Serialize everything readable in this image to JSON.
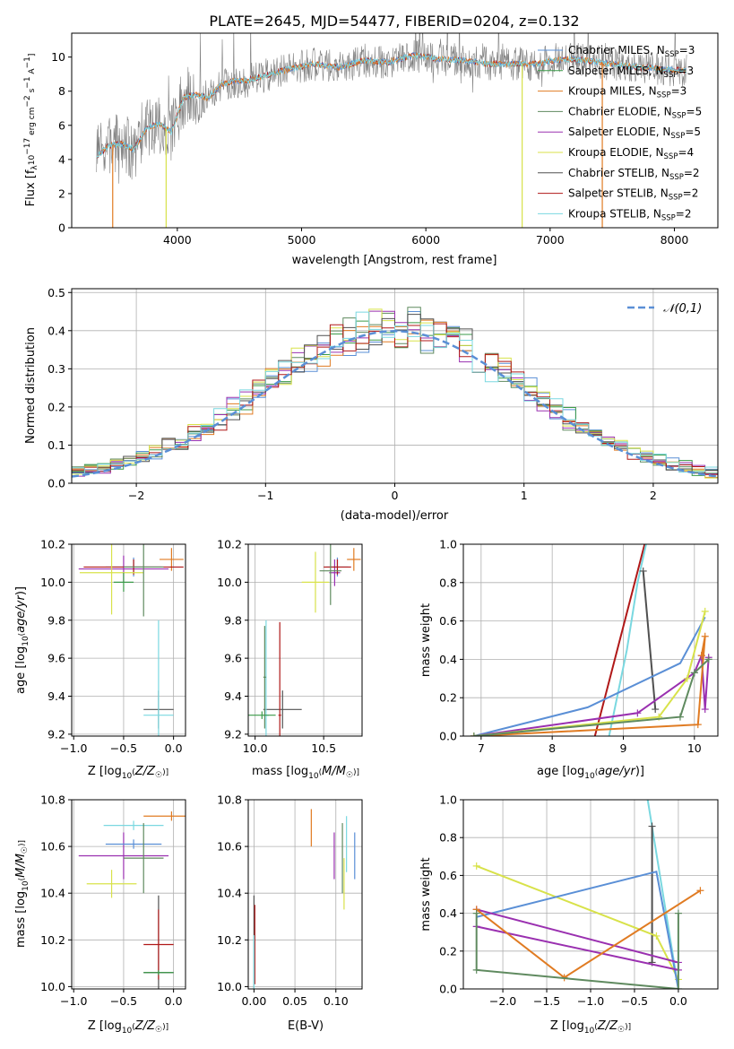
{
  "figure_title": "PLATE=2645, MJD=54477, FIBERID=0204, z=0.132",
  "models": [
    {
      "name": "Chabrier MILES, N_{SSP}=3",
      "label": "Chabrier MILES, N",
      "sub": "SSP",
      "tail": "=3",
      "color": "#5a8fd6"
    },
    {
      "name": "Salpeter MILES, N_{SSP}=3",
      "label": "Salpeter MILES, N",
      "sub": "SSP",
      "tail": "=3",
      "color": "#3a9a48"
    },
    {
      "name": "Kroupa MILES, N_{SSP}=3",
      "label": "Kroupa MILES, N",
      "sub": "SSP",
      "tail": "=3",
      "color": "#e07b22"
    },
    {
      "name": "Chabrier ELODIE, N_{SSP}=5",
      "label": "Chabrier ELODIE, N",
      "sub": "SSP",
      "tail": "=5",
      "color": "#5f8a5f"
    },
    {
      "name": "Salpeter ELODIE, N_{SSP}=5",
      "label": "Salpeter ELODIE, N",
      "sub": "SSP",
      "tail": "=5",
      "color": "#9a30b0"
    },
    {
      "name": "Kroupa ELODIE, N_{SSP}=4",
      "label": "Kroupa ELODIE, N",
      "sub": "SSP",
      "tail": "=4",
      "color": "#d8e24a"
    },
    {
      "name": "Chabrier STELIB, N_{SSP}=2",
      "label": "Chabrier STELIB, N",
      "sub": "SSP",
      "tail": "=2",
      "color": "#505050"
    },
    {
      "name": "Salpeter STELIB, N_{SSP}=2",
      "label": "Salpeter STELIB, N",
      "sub": "SSP",
      "tail": "=2",
      "color": "#b01818"
    },
    {
      "name": "Kroupa STELIB, N_{SSP}=2",
      "label": "Kroupa STELIB, N",
      "sub": "SSP",
      "tail": "=2",
      "color": "#7ad8e0"
    }
  ],
  "chart_data": [
    {
      "id": "spectrum",
      "type": "line",
      "xlabel": "wavelength [Angstrom, rest frame]",
      "ylabel": "Flux [f_λ10^-17 erg cm^-2 s^-1 A^-1]",
      "xlim": [
        3150,
        8350
      ],
      "ylim": [
        0,
        11.4
      ],
      "xticks": [
        4000,
        5000,
        6000,
        7000,
        8000
      ],
      "yticks": [
        0,
        2,
        4,
        6,
        8,
        10
      ],
      "data_range": [
        3350,
        8100
      ],
      "data_color": "#808080",
      "continuum_x": [
        3350,
        3450,
        3550,
        3650,
        3750,
        3850,
        3950,
        4050,
        4150,
        4250,
        4350,
        4450,
        4550,
        4700,
        4900,
        5100,
        5300,
        5500,
        5700,
        5900,
        6100,
        6300,
        6500,
        6700,
        6900,
        7100,
        7300,
        7500,
        7700,
        7900,
        8100
      ],
      "continuum_y": [
        4.2,
        4.8,
        4.9,
        4.6,
        5.8,
        6.1,
        5.6,
        7.6,
        7.8,
        7.6,
        8.4,
        8.6,
        8.6,
        8.9,
        9.3,
        9.6,
        9.4,
        9.8,
        9.7,
        10.1,
        9.9,
        9.8,
        9.6,
        9.6,
        9.6,
        9.9,
        9.8,
        9.6,
        9.4,
        9.3,
        9.2
      ],
      "dropouts": [
        {
          "x": 3480,
          "color": "#e07b22"
        },
        {
          "x": 3910,
          "color": "#d8e24a"
        },
        {
          "x": 6775,
          "color": "#d8e24a"
        },
        {
          "x": 7420,
          "color": "#e07b22"
        }
      ]
    },
    {
      "id": "residuals",
      "type": "histogram",
      "xlabel": "(data-model)/error",
      "ylabel": "Normed distribution",
      "xlim": [
        -2.5,
        2.5
      ],
      "ylim": [
        0,
        0.51
      ],
      "xticks": [
        -2,
        -1,
        0,
        1,
        2
      ],
      "yticks": [
        0.0,
        0.1,
        0.2,
        0.3,
        0.4,
        0.5
      ],
      "bin_width": 0.1,
      "reference": {
        "name": "𝒩(0,1)",
        "color": "#5a8fd6"
      }
    },
    {
      "id": "age_vs_Z",
      "type": "errorbar",
      "xlabel": "Z [log10(Z/Z☉)]",
      "ylabel": "age [log10(age/yr)]",
      "xlim": [
        -1.02,
        0.12
      ],
      "ylim": [
        9.19,
        10.2
      ],
      "xticks": [
        -1.0,
        -0.5,
        0.0
      ],
      "yticks": [
        9.2,
        9.4,
        9.6,
        9.8,
        10.0,
        10.2
      ],
      "points": [
        {
          "m": 2,
          "x": -0.02,
          "xe": 0.12,
          "y": 10.12,
          "ye": 0.06
        },
        {
          "m": 0,
          "x": -0.4,
          "xe": 0.28,
          "y": 10.08,
          "ye": 0.05
        },
        {
          "m": 4,
          "x": -0.5,
          "xe": 0.45,
          "y": 10.07,
          "ye": 0.07
        },
        {
          "m": 7,
          "x": -0.4,
          "xe": 0.5,
          "y": 10.08,
          "ye": 0.04
        },
        {
          "m": 5,
          "x": -0.62,
          "xe": 0.32,
          "y": 10.05,
          "ye": 0.22
        },
        {
          "m": 3,
          "x": -0.3,
          "xe": 0.2,
          "y": 10.08,
          "ye": 0.26
        },
        {
          "m": 6,
          "x": -0.15,
          "xe": 0.15,
          "y": 9.33,
          "ye": 0.1
        },
        {
          "m": 8,
          "x": -0.15,
          "xe": 0.15,
          "y": 9.3,
          "ye": 0.5
        },
        {
          "m": 1,
          "x": -0.5,
          "xe": 0.1,
          "y": 10.0,
          "ye": 0.05
        }
      ]
    },
    {
      "id": "age_vs_mass",
      "type": "errorbar",
      "xlabel": "mass [log10(M/M☉)]",
      "ylabel": "",
      "xlim": [
        9.95,
        10.78
      ],
      "ylim": [
        9.19,
        10.2
      ],
      "xticks": [
        10.0,
        10.5
      ],
      "yticks": [
        9.2,
        9.4,
        9.6,
        9.8,
        10.0,
        10.2
      ],
      "points": [
        {
          "m": 2,
          "x": 10.72,
          "xe": 0.05,
          "y": 10.12,
          "ye": 0.06
        },
        {
          "m": 0,
          "x": 10.6,
          "xe": 0.08,
          "y": 10.08,
          "ye": 0.05
        },
        {
          "m": 4,
          "x": 10.58,
          "xe": 0.04,
          "y": 10.05,
          "ye": 0.07
        },
        {
          "m": 7,
          "x": 10.6,
          "xe": 0.1,
          "y": 10.08,
          "ye": 0.04
        },
        {
          "m": 5,
          "x": 10.44,
          "xe": 0.1,
          "y": 10.0,
          "ye": 0.16
        },
        {
          "m": 3,
          "x": 10.55,
          "xe": 0.08,
          "y": 10.06,
          "ye": 0.18
        },
        {
          "m": 6,
          "x": 10.2,
          "xe": 0.14,
          "y": 9.33,
          "ye": 0.1
        },
        {
          "m": 8,
          "x": 10.08,
          "xe": 0.02,
          "y": 9.3,
          "ye": 0.5
        },
        {
          "m": 7,
          "x": 10.18,
          "xe": 0.01,
          "y": 9.3,
          "ye": 0.49
        },
        {
          "m": 3,
          "x": 10.07,
          "xe": 0.01,
          "y": 9.5,
          "ye": 0.27
        },
        {
          "m": 1,
          "x": 10.05,
          "xe": 0.1,
          "y": 9.3,
          "ye": 0.02
        }
      ]
    },
    {
      "id": "weight_vs_age",
      "type": "line",
      "xlabel": "age [log10(age/yr)]",
      "ylabel": "mass weight",
      "xlim": [
        6.75,
        10.33
      ],
      "ylim": [
        0,
        1.0
      ],
      "xticks": [
        7,
        8,
        9,
        10
      ],
      "yticks": [
        0.0,
        0.2,
        0.4,
        0.6,
        0.8,
        1.0
      ],
      "series": [
        {
          "m": 7,
          "x": [
            8.6,
            9.3
          ],
          "y": [
            0,
            1.0
          ],
          "marker": false
        },
        {
          "m": 8,
          "x": [
            8.8,
            9.05,
            9.2,
            9.32
          ],
          "y": [
            0,
            0.45,
            0.8,
            1.0
          ],
          "marker": false
        },
        {
          "m": 6,
          "x": [
            9.28,
            9.45
          ],
          "y": [
            0.86,
            0.14
          ],
          "marker": true
        },
        {
          "m": 0,
          "x": [
            6.9,
            8.5,
            9.8,
            10.15
          ],
          "y": [
            0,
            0.15,
            0.38,
            0.62
          ],
          "marker": false
        },
        {
          "m": 4,
          "x": [
            6.9,
            9.2,
            10.0,
            10.1,
            10.15,
            10.2
          ],
          "y": [
            0,
            0.12,
            0.33,
            0.42,
            0.14,
            0.41
          ],
          "marker": true
        },
        {
          "m": 2,
          "x": [
            6.9,
            10.05,
            10.15,
            10.1
          ],
          "y": [
            0,
            0.06,
            0.52,
            0.42
          ],
          "marker": true
        },
        {
          "m": 5,
          "x": [
            6.9,
            9.5,
            9.9,
            10.15
          ],
          "y": [
            0,
            0.1,
            0.3,
            0.65
          ],
          "marker": true
        },
        {
          "m": 3,
          "x": [
            6.9,
            9.8,
            10.0,
            10.2
          ],
          "y": [
            0,
            0.1,
            0.33,
            0.4
          ],
          "marker": true
        }
      ]
    },
    {
      "id": "mass_vs_Z",
      "type": "errorbar",
      "xlabel": "Z [log10(Z/Z☉)]",
      "ylabel": "mass [log10(M/M☉)]",
      "xlim": [
        -1.02,
        0.12
      ],
      "ylim": [
        9.99,
        10.8
      ],
      "xticks": [
        -1.0,
        -0.5,
        0.0
      ],
      "yticks": [
        10.0,
        10.2,
        10.4,
        10.6,
        10.8
      ],
      "points": [
        {
          "m": 2,
          "x": -0.02,
          "xe": 0.28,
          "y": 10.73,
          "ye": 0.02
        },
        {
          "m": 4,
          "x": -0.5,
          "xe": 0.45,
          "y": 10.56,
          "ye": 0.1
        },
        {
          "m": 0,
          "x": -0.4,
          "xe": 0.28,
          "y": 10.61,
          "ye": 0.02
        },
        {
          "m": 8,
          "x": -0.4,
          "xe": 0.3,
          "y": 10.69,
          "ye": 0.02
        },
        {
          "m": 5,
          "x": -0.62,
          "xe": 0.25,
          "y": 10.44,
          "ye": 0.06
        },
        {
          "m": 3,
          "x": -0.3,
          "xe": 0.2,
          "y": 10.55,
          "ye": 0.15
        },
        {
          "m": 6,
          "x": -0.15,
          "xe": 0.15,
          "y": 10.06,
          "ye": 0.33
        },
        {
          "m": 7,
          "x": -0.15,
          "xe": 0.15,
          "y": 10.18,
          "ye": 0.15
        },
        {
          "m": 1,
          "x": -0.15,
          "xe": 0.15,
          "y": 10.06,
          "ye": 0.01
        }
      ]
    },
    {
      "id": "mass_vs_EBV",
      "type": "errorbar",
      "xlabel": "E(B-V)",
      "ylabel": "",
      "xlim": [
        -0.007,
        0.132
      ],
      "ylim": [
        9.99,
        10.8
      ],
      "xticks": [
        0.0,
        0.05,
        0.1
      ],
      "yticks": [
        10.0,
        10.2,
        10.4,
        10.6,
        10.8
      ],
      "points": [
        {
          "m": 2,
          "x": 0.07,
          "xe": 0,
          "y": 10.68,
          "ye": 0.08
        },
        {
          "m": 4,
          "x": 0.098,
          "xe": 0,
          "y": 10.56,
          "ye": 0.1
        },
        {
          "m": 8,
          "x": 0.113,
          "xe": 0,
          "y": 10.61,
          "ye": 0.12
        },
        {
          "m": 0,
          "x": 0.123,
          "xe": 0,
          "y": 10.56,
          "ye": 0.1
        },
        {
          "m": 5,
          "x": 0.11,
          "xe": 0,
          "y": 10.44,
          "ye": 0.11
        },
        {
          "m": 3,
          "x": 0.108,
          "xe": 0,
          "y": 10.55,
          "ye": 0.15
        },
        {
          "m": 6,
          "x": 0.0,
          "xe": 0,
          "y": 10.06,
          "ye": 0.33
        },
        {
          "m": 7,
          "x": 0.001,
          "xe": 0,
          "y": 10.18,
          "ye": 0.17
        },
        {
          "m": 8,
          "x": 0.0,
          "xe": 0,
          "y": 10.1,
          "ye": 0.12
        }
      ]
    },
    {
      "id": "weight_vs_Z",
      "type": "line",
      "xlabel": "Z [log10(Z/Z☉)]",
      "ylabel": "mass weight",
      "xlim": [
        -2.45,
        0.45
      ],
      "ylim": [
        0,
        1.0
      ],
      "xticks": [
        -2.0,
        -1.5,
        -1.0,
        -0.5,
        0.0
      ],
      "yticks": [
        0.0,
        0.2,
        0.4,
        0.6,
        0.8,
        1.0
      ],
      "series": [
        {
          "m": 8,
          "x": [
            -0.35,
            0.0
          ],
          "y": [
            1.0,
            0.0
          ],
          "marker": false
        },
        {
          "m": 6,
          "x": [
            -0.3,
            -0.3
          ],
          "y": [
            0.86,
            0.14
          ],
          "marker": true
        },
        {
          "m": 5,
          "x": [
            -2.3,
            -0.25,
            0.0
          ],
          "y": [
            0.65,
            0.28,
            0.05
          ],
          "marker": true
        },
        {
          "m": 0,
          "x": [
            -2.3,
            -0.25,
            0.0
          ],
          "y": [
            0.38,
            0.62,
            0.0
          ],
          "marker": false
        },
        {
          "m": 4,
          "x": [
            -2.3,
            0.0,
            0.0,
            -2.3
          ],
          "y": [
            0.42,
            0.14,
            0.1,
            0.33
          ],
          "marker": true
        },
        {
          "m": 2,
          "x": [
            -2.3,
            -1.3,
            0.25
          ],
          "y": [
            0.42,
            0.06,
            0.52
          ],
          "marker": true
        },
        {
          "m": 3,
          "x": [
            -2.3,
            -2.3,
            0.0,
            0.0
          ],
          "y": [
            0.4,
            0.1,
            0.0,
            0.4
          ],
          "marker": true
        }
      ]
    }
  ]
}
